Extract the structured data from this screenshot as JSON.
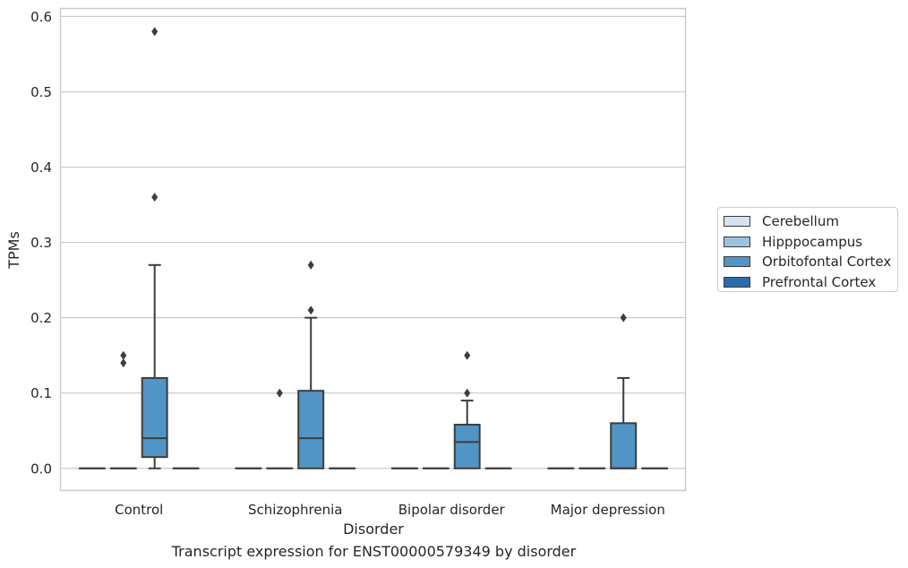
{
  "chart_data": {
    "type": "boxplot",
    "caption": "Transcript expression for ENST00000579349 by disorder",
    "xlabel": "Disorder",
    "ylabel": "TPMs",
    "ylim": [
      -0.03,
      0.61
    ],
    "yticks": [
      "0.0",
      "0.1",
      "0.2",
      "0.3",
      "0.4",
      "0.5",
      "0.6"
    ],
    "ytick_values": [
      0,
      0.1,
      0.2,
      0.3,
      0.4,
      0.5,
      0.6
    ],
    "grid": "horizontal",
    "legend_position": "right",
    "categories": [
      "Control",
      "Schizophrenia",
      "Bipolar disorder",
      "Major depression"
    ],
    "series": [
      {
        "name": "Cerebellum",
        "color": "#d5e2f1",
        "boxes": [
          {
            "q1": 0,
            "median": 0,
            "q3": 0,
            "whisker_low": 0,
            "whisker_high": 0,
            "outliers": []
          },
          {
            "q1": 0,
            "median": 0,
            "q3": 0,
            "whisker_low": 0,
            "whisker_high": 0,
            "outliers": []
          },
          {
            "q1": 0,
            "median": 0,
            "q3": 0,
            "whisker_low": 0,
            "whisker_high": 0,
            "outliers": []
          },
          {
            "q1": 0,
            "median": 0,
            "q3": 0,
            "whisker_low": 0,
            "whisker_high": 0,
            "outliers": []
          }
        ]
      },
      {
        "name": "Hipppocampus",
        "color": "#9ac4de",
        "boxes": [
          {
            "q1": 0,
            "median": 0,
            "q3": 0,
            "whisker_low": 0,
            "whisker_high": 0,
            "outliers": [
              0.14,
              0.15
            ]
          },
          {
            "q1": 0,
            "median": 0,
            "q3": 0,
            "whisker_low": 0,
            "whisker_high": 0,
            "outliers": [
              0.1
            ]
          },
          {
            "q1": 0,
            "median": 0,
            "q3": 0,
            "whisker_low": 0,
            "whisker_high": 0,
            "outliers": []
          },
          {
            "q1": 0,
            "median": 0,
            "q3": 0,
            "whisker_low": 0,
            "whisker_high": 0,
            "outliers": []
          }
        ]
      },
      {
        "name": "Orbitofontal Cortex",
        "color": "#5195c6",
        "boxes": [
          {
            "q1": 0.015,
            "median": 0.04,
            "q3": 0.12,
            "whisker_low": 0,
            "whisker_high": 0.27,
            "outliers": [
              0.36,
              0.58
            ]
          },
          {
            "q1": 0,
            "median": 0.04,
            "q3": 0.103,
            "whisker_low": 0,
            "whisker_high": 0.2,
            "outliers": [
              0.21,
              0.27
            ]
          },
          {
            "q1": 0,
            "median": 0.035,
            "q3": 0.058,
            "whisker_low": 0,
            "whisker_high": 0.09,
            "outliers": [
              0.1,
              0.15
            ]
          },
          {
            "q1": 0,
            "median": 0,
            "q3": 0.06,
            "whisker_low": 0,
            "whisker_high": 0.12,
            "outliers": [
              0.2
            ]
          }
        ]
      },
      {
        "name": "Prefrontal Cortex",
        "color": "#2c6ba8",
        "boxes": [
          {
            "q1": 0,
            "median": 0,
            "q3": 0,
            "whisker_low": 0,
            "whisker_high": 0,
            "outliers": []
          },
          {
            "q1": 0,
            "median": 0,
            "q3": 0,
            "whisker_low": 0,
            "whisker_high": 0,
            "outliers": []
          },
          {
            "q1": 0,
            "median": 0,
            "q3": 0,
            "whisker_low": 0,
            "whisker_high": 0,
            "outliers": []
          },
          {
            "q1": 0,
            "median": 0,
            "q3": 0,
            "whisker_low": 0,
            "whisker_high": 0,
            "outliers": []
          }
        ]
      }
    ]
  }
}
